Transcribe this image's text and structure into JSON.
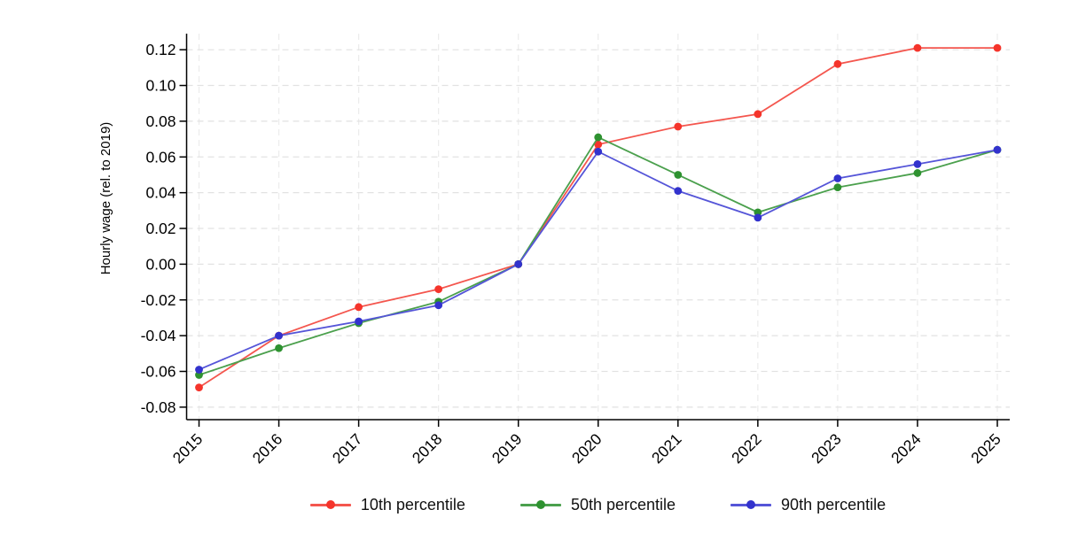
{
  "figure": {
    "background": "#ffffff",
    "axis_color": "#000000",
    "grid_color_h": "#e2e2e2",
    "grid_color_v": "#ececec"
  },
  "chart_data": {
    "type": "line",
    "title": "",
    "xlabel": "",
    "ylabel": "Hourly wage (rel. to 2019)",
    "categories": [
      "2015",
      "2016",
      "2017",
      "2018",
      "2019",
      "2020",
      "2021",
      "2022",
      "2023",
      "2024",
      "2025"
    ],
    "yticks": [
      -0.08,
      -0.06,
      -0.04,
      -0.02,
      0.0,
      0.02,
      0.04,
      0.06,
      0.08,
      0.1,
      0.12
    ],
    "ytick_labels": [
      "-0.08",
      "-0.06",
      "-0.04",
      "-0.02",
      "0.00",
      "0.02",
      "0.04",
      "0.06",
      "0.08",
      "0.10",
      "0.12"
    ],
    "ylim": [
      -0.087,
      0.129
    ],
    "grid": true,
    "legend_position": "bottom",
    "series": [
      {
        "name": "10th percentile",
        "color": "#f5342b",
        "line_color": "#f4564e",
        "values": [
          -0.069,
          -0.04,
          -0.024,
          -0.014,
          0.0,
          0.067,
          0.077,
          0.084,
          0.112,
          0.121,
          0.121
        ]
      },
      {
        "name": "50th percentile",
        "color": "#2e9230",
        "line_color": "#4ba04d",
        "values": [
          -0.062,
          -0.047,
          -0.033,
          -0.021,
          0.0,
          0.071,
          0.05,
          0.029,
          0.043,
          0.051,
          0.064
        ]
      },
      {
        "name": "90th percentile",
        "color": "#3232cd",
        "line_color": "#5555d8",
        "values": [
          -0.059,
          -0.04,
          -0.032,
          -0.023,
          0.0,
          0.063,
          0.041,
          0.026,
          0.048,
          0.056,
          0.064
        ]
      }
    ]
  }
}
